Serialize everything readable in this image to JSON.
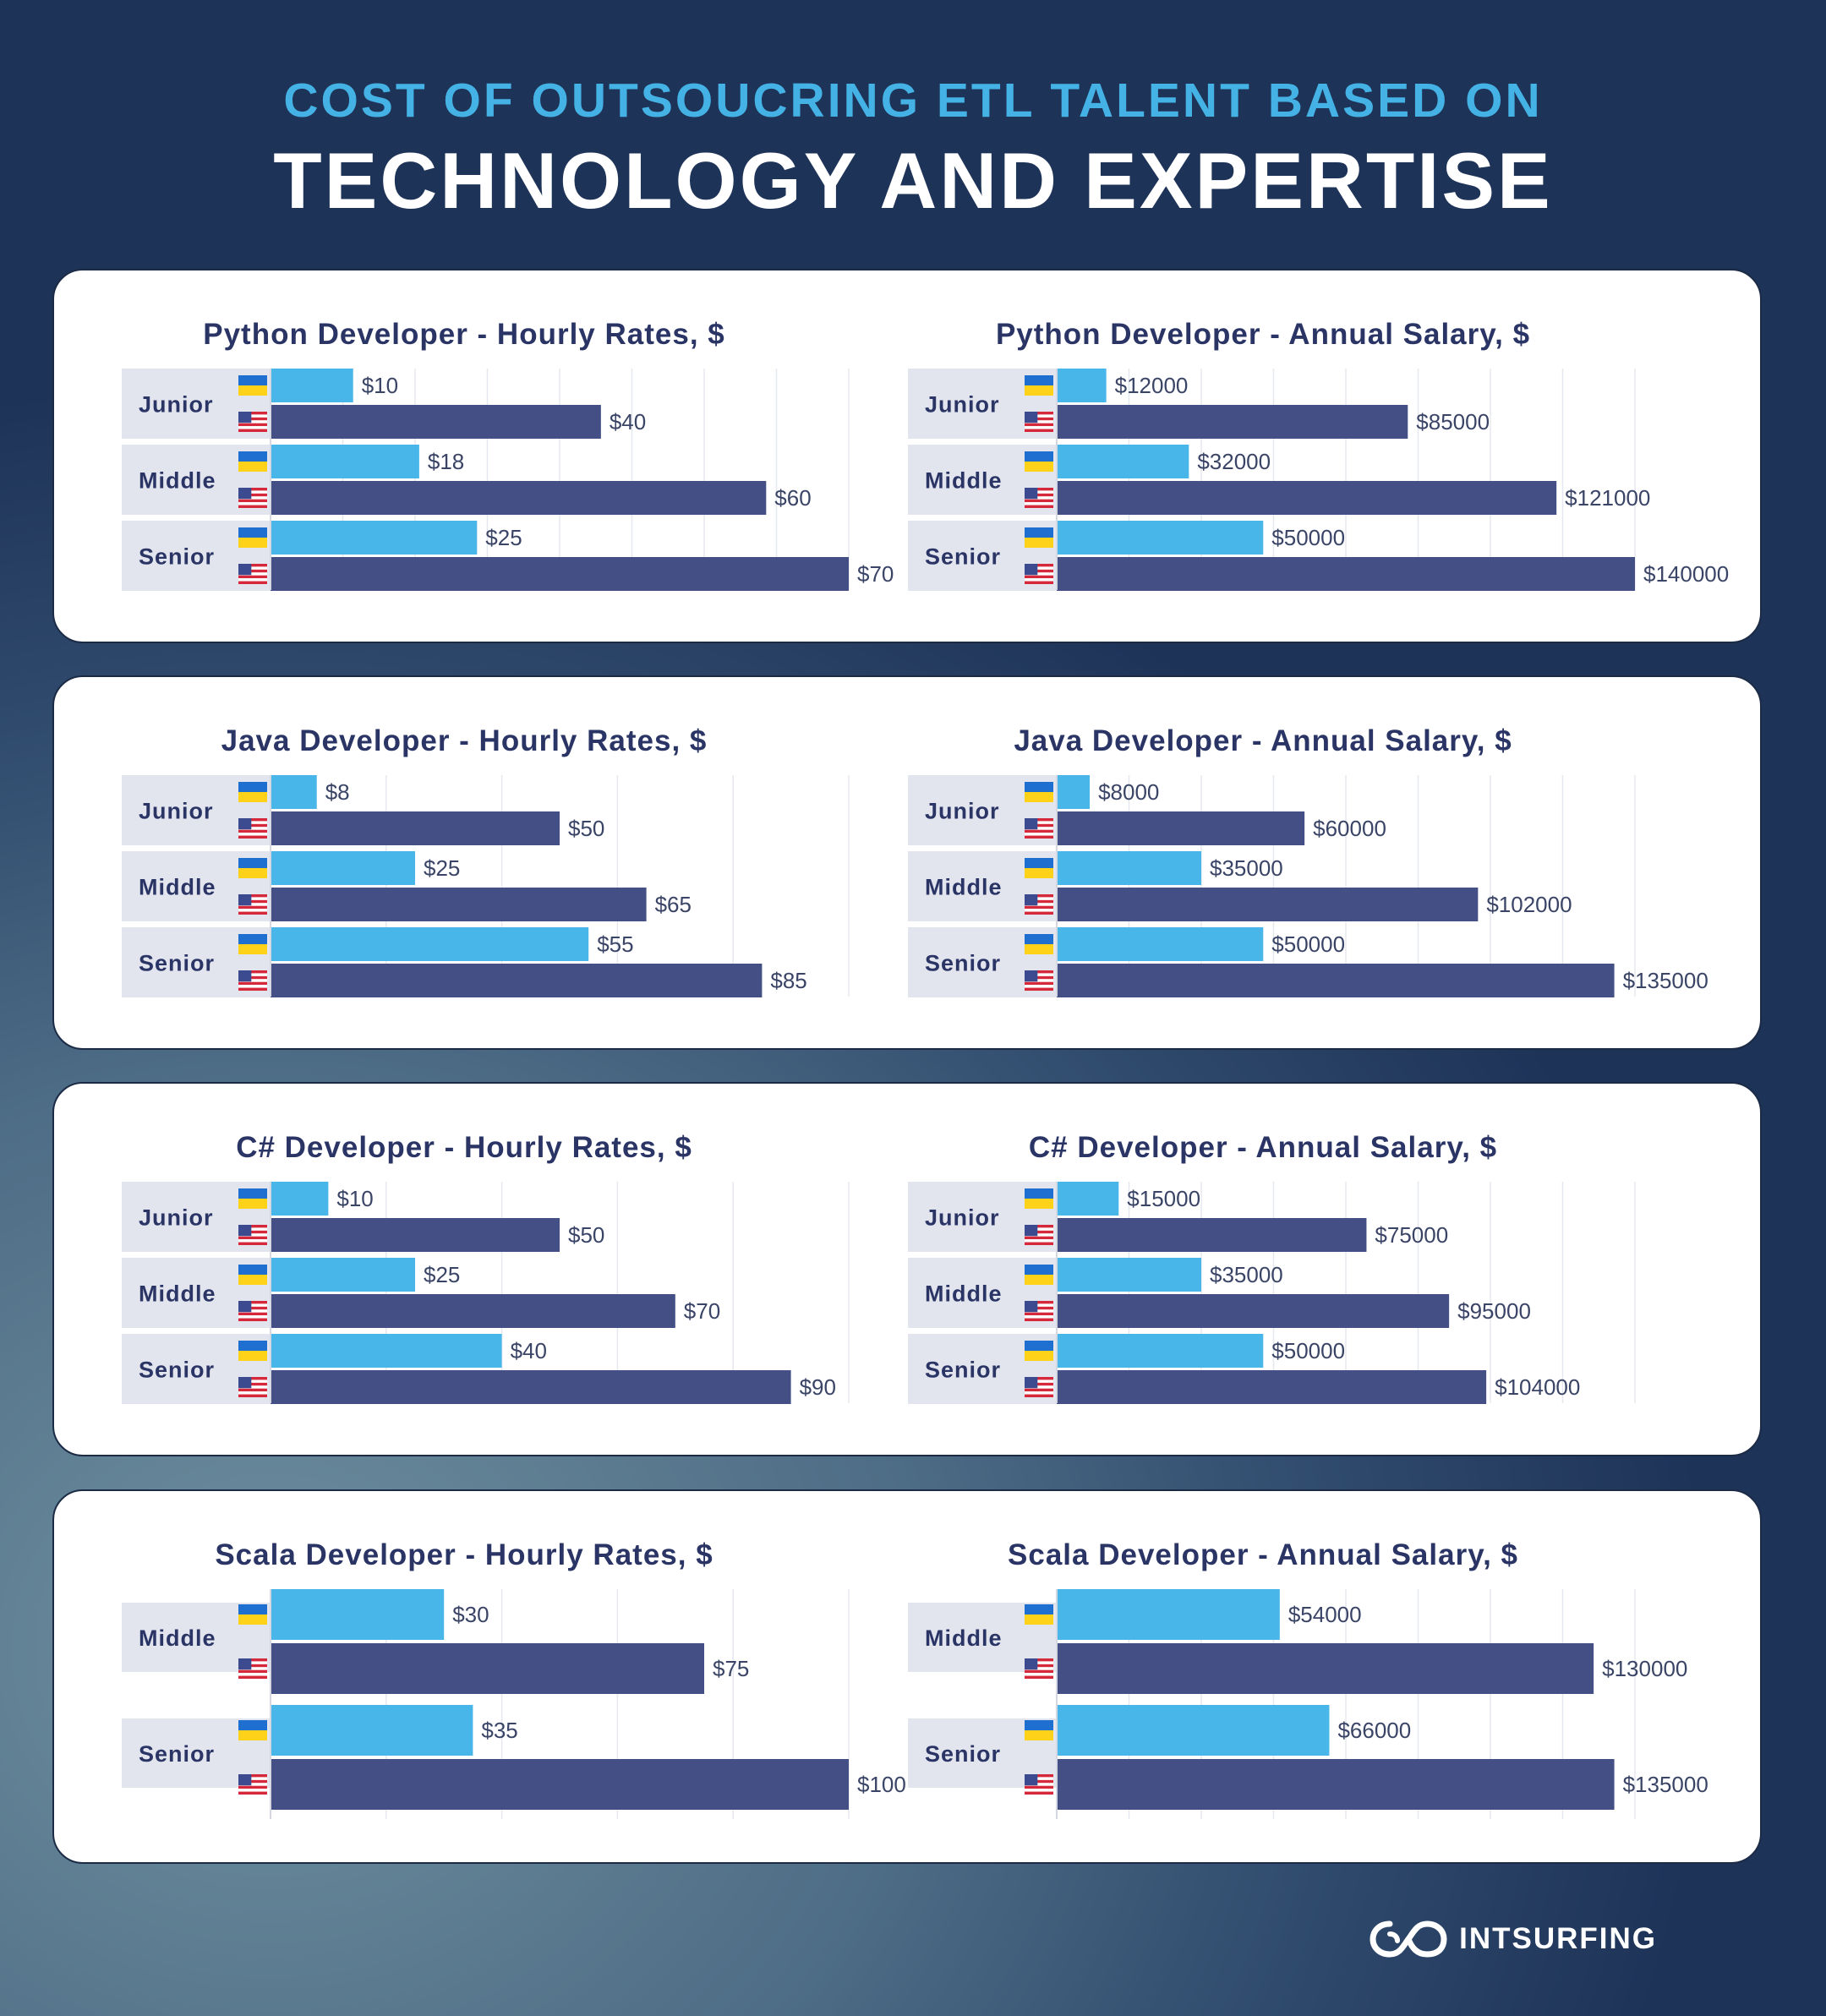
{
  "header": {
    "title_top": "COST OF OUTSOUCRING ETL TALENT BASED ON",
    "title_main": "TECHNOLOGY AND EXPERTISE"
  },
  "brand": {
    "logo_text": "INTSURFING"
  },
  "colors": {
    "ukraine_bar": "#48b6e8",
    "usa_bar": "#434f85",
    "label_bg": "#e2e4ee",
    "title": "#2a3566"
  },
  "icons": {
    "ukraine": "ukraine-flag-icon",
    "usa": "usa-flag-icon",
    "logo": "intsurfing-logo-icon"
  },
  "chart_data": [
    {
      "type": "bar",
      "title": "Python Developer - Hourly Rates, $",
      "categories": [
        "Junior",
        "Middle",
        "Senior"
      ],
      "series": [
        {
          "name": "Ukraine",
          "values": [
            10,
            18,
            25
          ],
          "labels": [
            "$10",
            "$18",
            "$25"
          ]
        },
        {
          "name": "USA",
          "values": [
            40,
            60,
            70
          ],
          "labels": [
            "$40",
            "$60",
            "$70"
          ]
        }
      ],
      "xlim": [
        0,
        70
      ]
    },
    {
      "type": "bar",
      "title": "Python Developer - Annual Salary, $",
      "categories": [
        "Junior",
        "Middle",
        "Senior"
      ],
      "series": [
        {
          "name": "Ukraine",
          "values": [
            12000,
            32000,
            50000
          ],
          "labels": [
            "$12000",
            "$32000",
            "$50000"
          ]
        },
        {
          "name": "USA",
          "values": [
            85000,
            121000,
            140000
          ],
          "labels": [
            "$85000",
            "$121000",
            "$140000"
          ]
        }
      ],
      "xlim": [
        0,
        140000
      ]
    },
    {
      "type": "bar",
      "title": "Java Developer - Hourly Rates, $",
      "categories": [
        "Junior",
        "Middle",
        "Senior"
      ],
      "series": [
        {
          "name": "Ukraine",
          "values": [
            8,
            25,
            55
          ],
          "labels": [
            "$8",
            "$25",
            "$55"
          ]
        },
        {
          "name": "USA",
          "values": [
            50,
            65,
            85
          ],
          "labels": [
            "$50",
            "$65",
            "$85"
          ]
        }
      ],
      "xlim": [
        0,
        100
      ]
    },
    {
      "type": "bar",
      "title": "Java Developer - Annual Salary, $",
      "categories": [
        "Junior",
        "Middle",
        "Senior"
      ],
      "series": [
        {
          "name": "Ukraine",
          "values": [
            8000,
            35000,
            50000
          ],
          "labels": [
            "$8000",
            "$35000",
            "$50000"
          ]
        },
        {
          "name": "USA",
          "values": [
            60000,
            102000,
            135000
          ],
          "labels": [
            "$60000",
            "$102000",
            "$135000"
          ]
        }
      ],
      "xlim": [
        0,
        140000
      ]
    },
    {
      "type": "bar",
      "title": "C# Developer - Hourly Rates, $",
      "categories": [
        "Junior",
        "Middle",
        "Senior"
      ],
      "series": [
        {
          "name": "Ukraine",
          "values": [
            10,
            25,
            40
          ],
          "labels": [
            "$10",
            "$25",
            "$40"
          ]
        },
        {
          "name": "USA",
          "values": [
            50,
            70,
            90
          ],
          "labels": [
            "$50",
            "$70",
            "$90"
          ]
        }
      ],
      "xlim": [
        0,
        100
      ]
    },
    {
      "type": "bar",
      "title": "C# Developer - Annual Salary, $",
      "categories": [
        "Junior",
        "Middle",
        "Senior"
      ],
      "series": [
        {
          "name": "Ukraine",
          "values": [
            15000,
            35000,
            50000
          ],
          "labels": [
            "$15000",
            "$35000",
            "$50000"
          ]
        },
        {
          "name": "USA",
          "values": [
            75000,
            95000,
            104000
          ],
          "labels": [
            "$75000",
            "$95000",
            "$104000"
          ]
        }
      ],
      "xlim": [
        0,
        140000
      ]
    },
    {
      "type": "bar",
      "title": "Scala Developer - Hourly Rates, $",
      "categories": [
        "Middle",
        "Senior"
      ],
      "series": [
        {
          "name": "Ukraine",
          "values": [
            30,
            35
          ],
          "labels": [
            "$30",
            "$35"
          ]
        },
        {
          "name": "USA",
          "values": [
            75,
            100
          ],
          "labels": [
            "$75",
            "$100"
          ]
        }
      ],
      "xlim": [
        0,
        100
      ]
    },
    {
      "type": "bar",
      "title": "Scala Developer - Annual Salary, $",
      "categories": [
        "Middle",
        "Senior"
      ],
      "series": [
        {
          "name": "Ukraine",
          "values": [
            54000,
            66000
          ],
          "labels": [
            "$54000",
            "$66000"
          ]
        },
        {
          "name": "USA",
          "values": [
            130000,
            135000
          ],
          "labels": [
            "$130000",
            "$135000"
          ]
        }
      ],
      "xlim": [
        0,
        140000
      ]
    }
  ]
}
